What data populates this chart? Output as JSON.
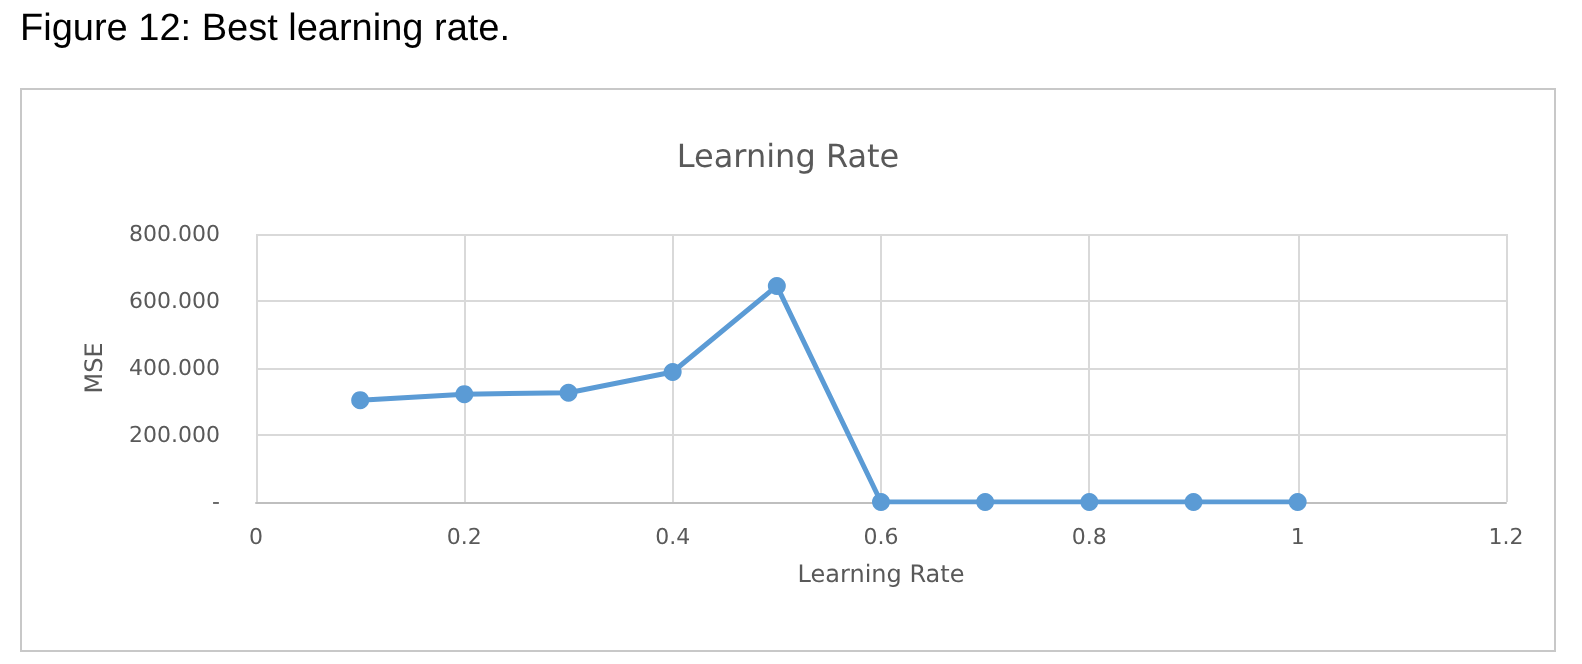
{
  "chart_data": {
    "type": "line",
    "title": "Learning Rate",
    "xlabel": "Learning Rate",
    "ylabel": "MSE",
    "annotations": [
      "Figure 12: Best learning rate."
    ],
    "x": [
      0.1,
      0.2,
      0.3,
      0.4,
      0.5,
      0.6,
      0.7,
      0.8,
      0.9,
      1
    ],
    "series": [
      {
        "color": "#5b9bd5",
        "values": [
          304,
          322,
          326,
          388,
          645,
          0,
          0,
          0,
          0,
          0
        ]
      }
    ],
    "xlim": [
      0,
      1.2
    ],
    "xticks": [
      0,
      0.2,
      0.4,
      0.6,
      0.8,
      1,
      1.2
    ],
    "ylim": [
      0,
      800
    ],
    "yticks": [
      {
        "value": 0,
        "label": "-"
      },
      {
        "value": 200,
        "label": "200.000"
      },
      {
        "value": 400,
        "label": "400.000"
      },
      {
        "value": 600,
        "label": "600.000"
      },
      {
        "value": 800,
        "label": "800.000"
      }
    ],
    "grid": true,
    "marker": "circle",
    "line_style": "solid"
  }
}
